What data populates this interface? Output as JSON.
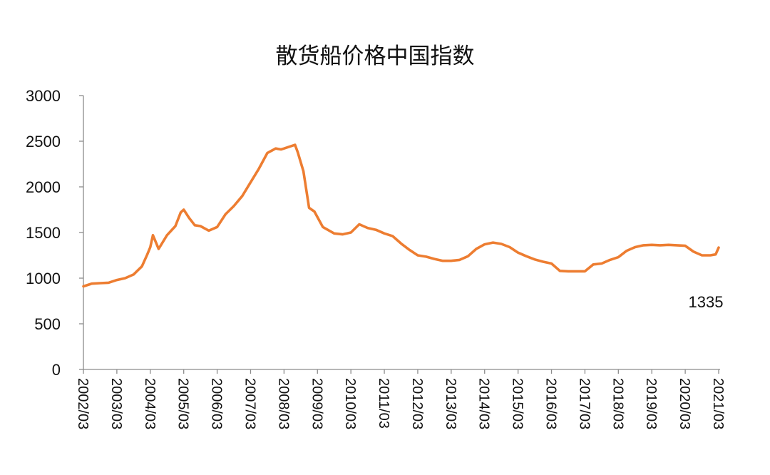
{
  "chart_data": {
    "type": "line",
    "title": "散货船价格中国指数",
    "xlabel": "",
    "ylabel": "",
    "ylim": [
      0,
      3000
    ],
    "yticks": [
      "0",
      "500",
      "1000",
      "1500",
      "2000",
      "2500",
      "3000"
    ],
    "xticks": [
      "2002/03",
      "2003/03",
      "2004/03",
      "2005/03",
      "2006/03",
      "2007/03",
      "2008/03",
      "2009/03",
      "2010/03",
      "2011/03",
      "2012/03",
      "2013/03",
      "2014/03",
      "2015/03",
      "2016/03",
      "2017/03",
      "2018/03",
      "2019/03",
      "2020/03",
      "2021/03"
    ],
    "grid": false,
    "legend": "none",
    "line_color": "#ED7D31",
    "series": [
      {
        "x": [
          2002.17,
          2002.42,
          2002.67,
          2002.92,
          2003.17,
          2003.42,
          2003.67,
          2003.92,
          2004.08,
          2004.17,
          2004.25,
          2004.42,
          2004.67,
          2004.92,
          2005.08,
          2005.17,
          2005.33,
          2005.5,
          2005.67,
          2005.92,
          2006.17,
          2006.42,
          2006.67,
          2006.92,
          2007.17,
          2007.42,
          2007.67,
          2007.92,
          2008.08,
          2008.17,
          2008.5,
          2008.58,
          2008.75,
          2008.92,
          2009.08,
          2009.33,
          2009.67,
          2009.92,
          2010.17,
          2010.42,
          2010.67,
          2010.92,
          2011.17,
          2011.42,
          2011.67,
          2011.92,
          2012.17,
          2012.42,
          2012.67,
          2012.92,
          2013.17,
          2013.42,
          2013.67,
          2013.92,
          2014.17,
          2014.42,
          2014.67,
          2014.92,
          2015.17,
          2015.42,
          2015.67,
          2015.92,
          2016.17,
          2016.42,
          2016.67,
          2016.92,
          2017.17,
          2017.42,
          2017.67,
          2017.92,
          2018.17,
          2018.42,
          2018.67,
          2018.92,
          2019.17,
          2019.42,
          2019.67,
          2019.92,
          2020.17,
          2020.42,
          2020.67,
          2020.92,
          2021.08,
          2021.17
        ],
        "y": [
          910,
          940,
          945,
          950,
          980,
          1000,
          1040,
          1130,
          1260,
          1340,
          1470,
          1320,
          1470,
          1570,
          1720,
          1750,
          1660,
          1580,
          1570,
          1520,
          1560,
          1700,
          1790,
          1900,
          2050,
          2200,
          2370,
          2420,
          2410,
          2420,
          2460,
          2380,
          2170,
          1770,
          1730,
          1560,
          1490,
          1480,
          1500,
          1590,
          1550,
          1530,
          1490,
          1460,
          1380,
          1310,
          1250,
          1235,
          1210,
          1190,
          1190,
          1200,
          1240,
          1320,
          1370,
          1390,
          1375,
          1340,
          1280,
          1240,
          1205,
          1180,
          1160,
          1080,
          1075,
          1075,
          1075,
          1150,
          1160,
          1200,
          1230,
          1300,
          1340,
          1360,
          1365,
          1360,
          1365,
          1360,
          1355,
          1290,
          1250,
          1250,
          1260,
          1335
        ]
      }
    ],
    "annotation": "1335"
  }
}
